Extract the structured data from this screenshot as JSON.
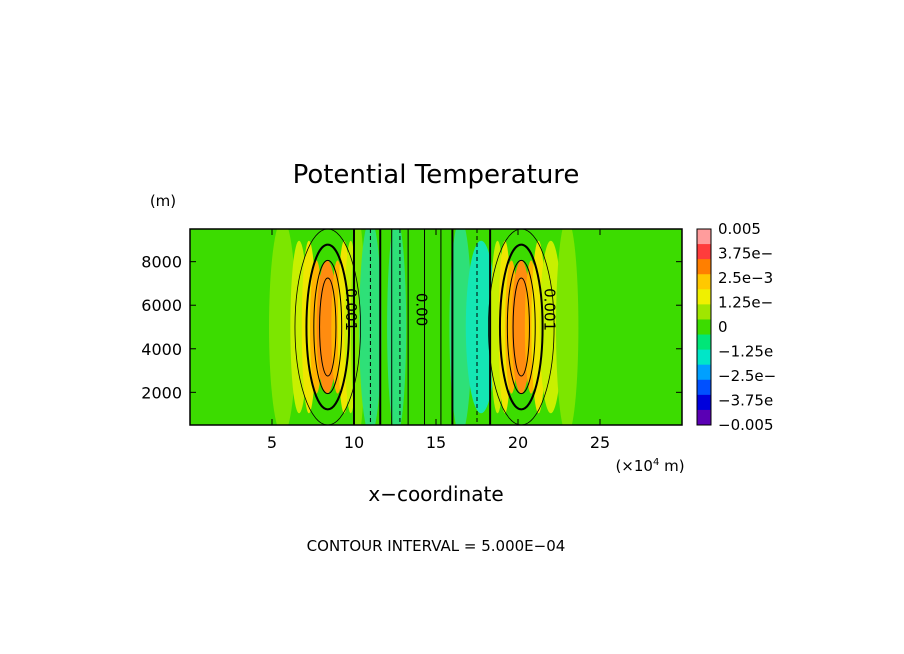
{
  "chart_data": {
    "type": "heatmap",
    "title": "Potential Temperature",
    "xlabel": "x−coordinate",
    "ylabel": "",
    "y_unit": "(m)",
    "x_unit_prefix": "(×10",
    "x_unit_exp": "4",
    "x_unit_suffix": " m)",
    "xlim": [
      0,
      30
    ],
    "ylim": [
      500,
      9500
    ],
    "x_ticks": [
      {
        "value": 5,
        "label": "5"
      },
      {
        "value": 10,
        "label": "10"
      },
      {
        "value": 15,
        "label": "15"
      },
      {
        "value": 20,
        "label": "20"
      },
      {
        "value": 25,
        "label": "25"
      }
    ],
    "y_ticks": [
      {
        "value": 2000,
        "label": "2000"
      },
      {
        "value": 4000,
        "label": "4000"
      },
      {
        "value": 6000,
        "label": "6000"
      },
      {
        "value": 8000,
        "label": "8000"
      }
    ],
    "contour_interval_text": "CONTOUR INTERVAL = 5.000E−04",
    "contour_labels": [
      {
        "text": "0.001",
        "x": 9.5,
        "y": 5800,
        "rotate": 90
      },
      {
        "text": "0.00",
        "x": 13.8,
        "y": 5800,
        "rotate": 90
      },
      {
        "text": "0.001",
        "x": 21.6,
        "y": 5800,
        "rotate": 90
      }
    ],
    "colorbar": {
      "min": -0.005,
      "max": 0.005,
      "labels": [
        "0.005",
        "3.75e−",
        "2.5e−3",
        "1.25e−",
        "0",
        "−1.25e",
        "−2.5e−",
        "−3.75e",
        "−0.005"
      ],
      "colors": [
        "#ff9c9c",
        "#ff3c3c",
        "#ff7f00",
        "#ffc800",
        "#f0f000",
        "#a0e600",
        "#3cdc00",
        "#00e678",
        "#00e6c8",
        "#00a0ff",
        "#0050ff",
        "#0000dc",
        "#5a00b4"
      ]
    },
    "field_cells": [
      {
        "x0": 0,
        "x1": 5,
        "level": 0
      },
      {
        "x0": 5,
        "x1": 6.3,
        "level": 1
      },
      {
        "x0": 6.3,
        "x1": 7,
        "level": 2
      },
      {
        "x0": 7,
        "x1": 7.5,
        "level": 3
      },
      {
        "x0": 7.5,
        "x1": 7.9,
        "level": 4
      },
      {
        "x0": 7.9,
        "x1": 8.8,
        "level": 5
      },
      {
        "x0": 8.8,
        "x1": 9.2,
        "level": 4
      },
      {
        "x0": 9.2,
        "x1": 9.6,
        "level": 3
      },
      {
        "x0": 9.6,
        "x1": 10.0,
        "level": 2
      },
      {
        "x0": 10.0,
        "x1": 10.5,
        "level": 1
      },
      {
        "x0": 10.5,
        "x1": 11.5,
        "level": -1
      },
      {
        "x0": 11.5,
        "x1": 12.2,
        "level": 0
      },
      {
        "x0": 12.2,
        "x1": 13.0,
        "level": -1
      },
      {
        "x0": 13.0,
        "x1": 16.0,
        "level": 0
      },
      {
        "x0": 16.0,
        "x1": 17.0,
        "level": -1
      },
      {
        "x0": 17.0,
        "x1": 18.5,
        "level": -2
      },
      {
        "x0": 18.5,
        "x1": 19.0,
        "level": 2
      },
      {
        "x0": 19.0,
        "x1": 19.4,
        "level": 3
      },
      {
        "x0": 19.4,
        "x1": 19.8,
        "level": 4
      },
      {
        "x0": 19.8,
        "x1": 20.6,
        "level": 5
      },
      {
        "x0": 20.6,
        "x1": 21.0,
        "level": 4
      },
      {
        "x0": 21.0,
        "x1": 21.5,
        "level": 3
      },
      {
        "x0": 21.5,
        "x1": 22.5,
        "level": 2
      },
      {
        "x0": 22.5,
        "x1": 23.5,
        "level": 1
      },
      {
        "x0": 23.5,
        "x1": 30,
        "level": 0
      }
    ],
    "contour_lines": [
      {
        "x": 10.0,
        "style": "solid",
        "weight": "thick"
      },
      {
        "x": 11.0,
        "style": "dashed",
        "weight": "thin"
      },
      {
        "x": 11.6,
        "style": "solid",
        "weight": "thick"
      },
      {
        "x": 12.3,
        "style": "solid",
        "weight": "thin"
      },
      {
        "x": 12.8,
        "style": "dashed",
        "weight": "thin"
      },
      {
        "x": 13.3,
        "style": "solid",
        "weight": "thin"
      },
      {
        "x": 14.3,
        "style": "solid",
        "weight": "thin"
      },
      {
        "x": 15.3,
        "style": "solid",
        "weight": "thin"
      },
      {
        "x": 16.0,
        "style": "solid",
        "weight": "thick"
      },
      {
        "x": 17.5,
        "style": "dashed",
        "weight": "thin"
      },
      {
        "x": 18.3,
        "style": "solid",
        "weight": "thick"
      }
    ]
  }
}
